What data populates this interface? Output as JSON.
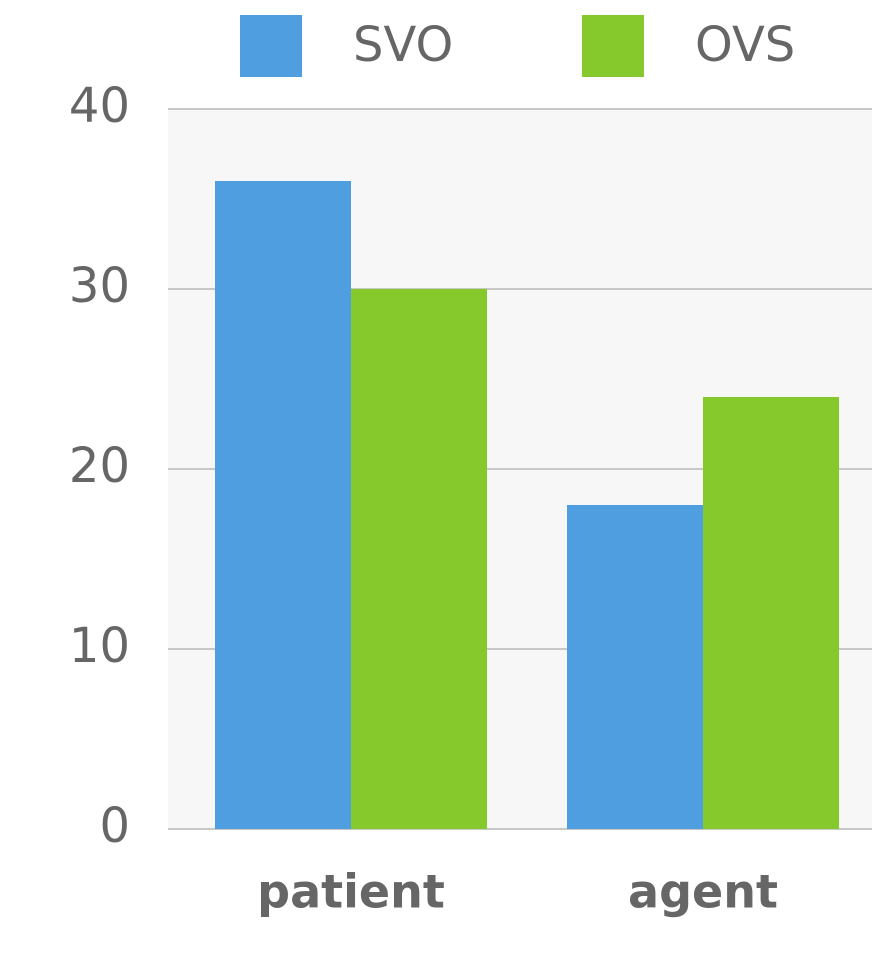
{
  "chart_data": {
    "type": "bar",
    "categories": [
      "patient",
      "agent"
    ],
    "series": [
      {
        "name": "SVO",
        "color": "#4f9fe0",
        "values": [
          36,
          18
        ]
      },
      {
        "name": "OVS",
        "color": "#86c92d",
        "values": [
          30,
          24
        ]
      }
    ],
    "ylim": [
      0,
      40
    ],
    "yticks": [
      0,
      10,
      20,
      30,
      40
    ],
    "grid": true,
    "legend": "top"
  }
}
